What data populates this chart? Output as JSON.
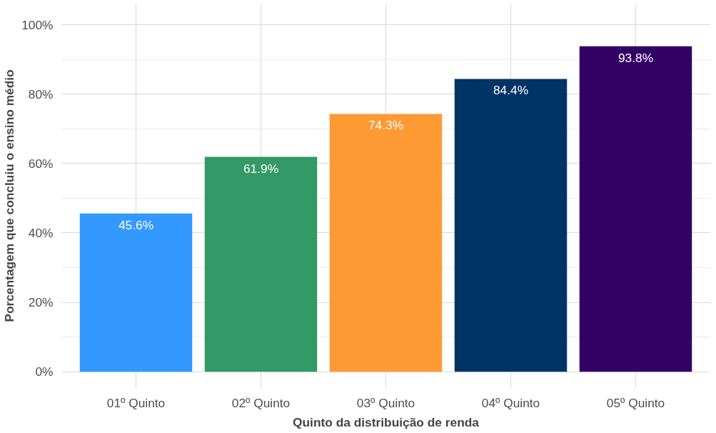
{
  "chart_data": {
    "type": "bar",
    "xlabel": "Quinto da distribuição de renda",
    "ylabel": "Porcentagem que concluiu o ensino médio",
    "categories": [
      "01º Quinto",
      "02º Quinto",
      "03º Quinto",
      "04º Quinto",
      "05º Quinto"
    ],
    "values": [
      45.6,
      61.9,
      74.3,
      84.4,
      93.8
    ],
    "colors": [
      "#3399ff",
      "#339966",
      "#ff9933",
      "#003366",
      "#330066"
    ],
    "value_labels": [
      "45.6%",
      "61.9%",
      "74.3%",
      "84.4%",
      "93.8%"
    ],
    "ylim": [
      -4.6,
      106
    ],
    "yticks": [
      {
        "value": 0,
        "label": "0%"
      },
      {
        "value": 20,
        "label": "20%"
      },
      {
        "value": 40,
        "label": "40%"
      },
      {
        "value": 60,
        "label": "60%"
      },
      {
        "value": 80,
        "label": "80%"
      },
      {
        "value": 100,
        "label": "100%"
      }
    ],
    "grid": true
  }
}
